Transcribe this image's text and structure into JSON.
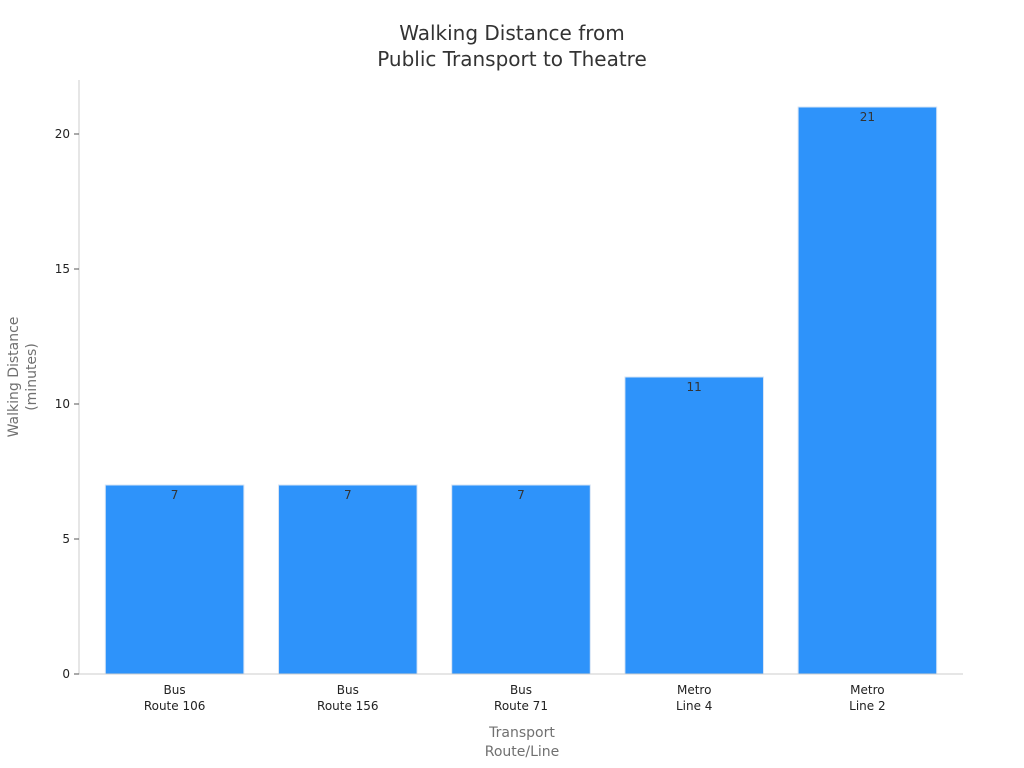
{
  "chart_data": {
    "type": "bar",
    "title": [
      "Walking Distance from",
      "Public Transport to Theatre"
    ],
    "xlabel": [
      "Transport",
      "Route/Line"
    ],
    "ylabel": [
      "Walking Distance",
      "(minutes)"
    ],
    "categories": [
      [
        "Bus",
        "Route 106"
      ],
      [
        "Bus",
        "Route 156"
      ],
      [
        "Bus",
        "Route 71"
      ],
      [
        "Metro",
        "Line 4"
      ],
      [
        "Metro",
        "Line 2"
      ]
    ],
    "values": [
      7,
      7,
      7,
      11,
      21
    ],
    "ylim": [
      0,
      22
    ],
    "yticks": [
      0,
      5,
      10,
      15,
      20
    ],
    "grid": false,
    "legend": "none",
    "colors": {
      "bar": "#2E93FA",
      "bar_edge": "#D6E4F5",
      "axis": "#CCCCCC"
    }
  }
}
